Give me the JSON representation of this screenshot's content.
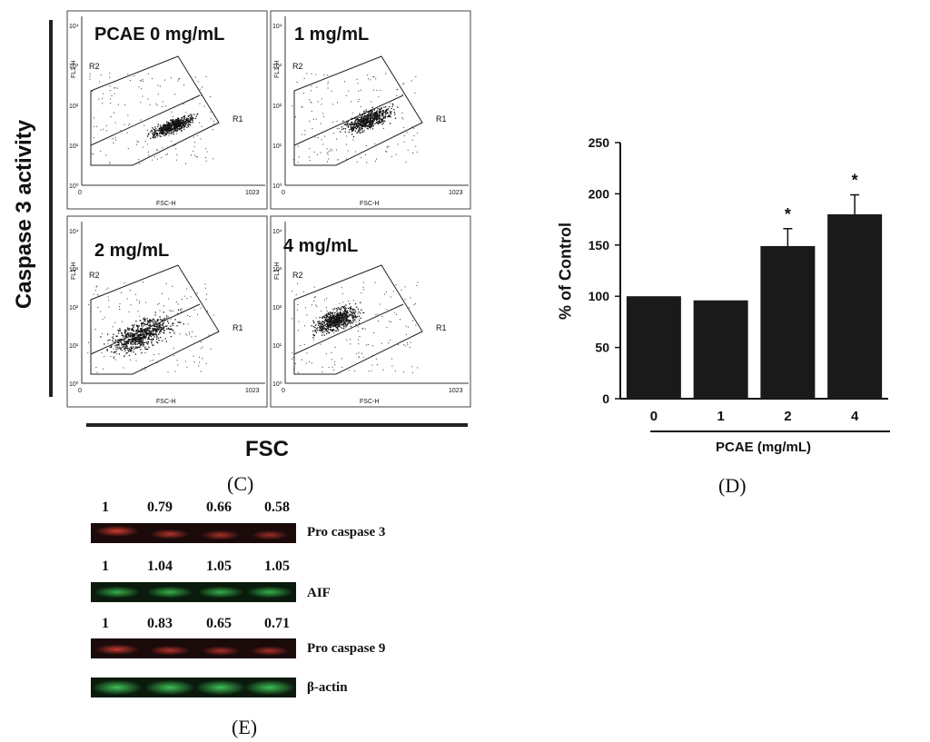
{
  "panel_c": {
    "y_axis_label": "Caspase 3 activity",
    "x_axis_label": "FSC",
    "letter": "(C)",
    "plots": [
      {
        "title": "PCAE 0 mg/mL",
        "gate_top": "R2",
        "gate_bottom": "R1",
        "xaxis": "FSC-H",
        "yaxis": "FL1-H",
        "x_min": "0",
        "x_max": "1023",
        "y_ticks": [
          "10⁰",
          "10¹",
          "10²",
          "10³",
          "10⁴"
        ]
      },
      {
        "title": "1 mg/mL",
        "gate_top": "R2",
        "gate_bottom": "R1",
        "xaxis": "FSC-H",
        "yaxis": "FL1-H",
        "x_min": "0",
        "x_max": "1023",
        "y_ticks": [
          "10⁰",
          "10¹",
          "10²",
          "10³",
          "10⁴"
        ]
      },
      {
        "title": "2 mg/mL",
        "gate_top": "R2",
        "gate_bottom": "R1",
        "xaxis": "FSC-H",
        "yaxis": "FL1-H",
        "x_min": "0",
        "x_max": "1023",
        "y_ticks": [
          "10⁰",
          "10¹",
          "10²",
          "10³",
          "10⁴"
        ]
      },
      {
        "title": "4 mg/mL",
        "gate_top": "R2",
        "gate_bottom": "R1",
        "xaxis": "FSC-H",
        "yaxis": "FL1-H",
        "x_min": "0",
        "x_max": "1023",
        "y_ticks": [
          "10⁰",
          "10¹",
          "10²",
          "10³",
          "10⁴"
        ]
      }
    ]
  },
  "chart_data": {
    "type": "bar",
    "title": "",
    "xlabel": "PCAE (mg/mL)",
    "ylabel": "% of Control",
    "categories": [
      "0",
      "1",
      "2",
      "4"
    ],
    "values": [
      100,
      96,
      149,
      180
    ],
    "errors": [
      0,
      0,
      17,
      19
    ],
    "significance": [
      "",
      "",
      "*",
      "*"
    ],
    "ylim": [
      0,
      250
    ],
    "yticks": [
      0,
      50,
      100,
      150,
      200,
      250
    ],
    "letter": "(D)"
  },
  "panel_e": {
    "letter": "(E)",
    "blots": [
      {
        "label": "Pro caspase 3",
        "ratios": [
          "1",
          "0.79",
          "0.66",
          "0.58"
        ],
        "color": "#c0392b"
      },
      {
        "label": "AIF",
        "ratios": [
          "1",
          "1.04",
          "1.05",
          "1.05"
        ],
        "color": "#1fa03a"
      },
      {
        "label": "Pro caspase 9",
        "ratios": [
          "1",
          "0.83",
          "0.65",
          "0.71"
        ],
        "color": "#c0392b"
      },
      {
        "label": "β-actin",
        "ratios": [],
        "color": "#1fa03a"
      }
    ]
  }
}
